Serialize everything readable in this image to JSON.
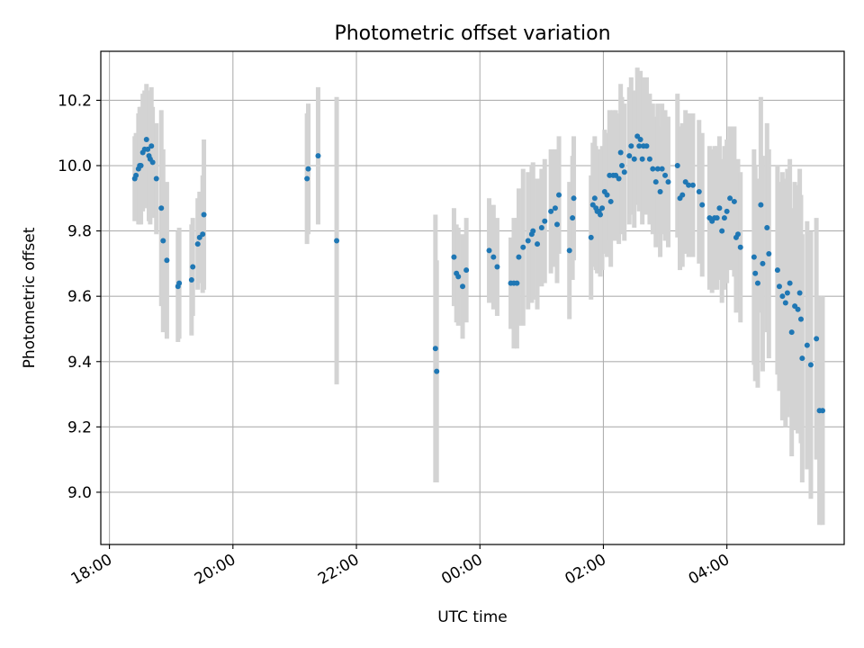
{
  "chart_data": {
    "type": "scatter",
    "title": "Photometric offset variation",
    "xlabel": "UTC time",
    "ylabel": "Photometric offset",
    "x_unit": "hours since 18:00 UTC",
    "xlim": [
      -0.14,
      11.9
    ],
    "ylim": [
      8.84,
      10.35
    ],
    "x_ticks": [
      {
        "label": "18:00",
        "value": 0
      },
      {
        "label": "20:00",
        "value": 2
      },
      {
        "label": "22:00",
        "value": 4
      },
      {
        "label": "00:00",
        "value": 6
      },
      {
        "label": "02:00",
        "value": 8
      },
      {
        "label": "04:00",
        "value": 10
      }
    ],
    "y_ticks": [
      {
        "label": "9.0",
        "value": 9.0
      },
      {
        "label": "9.2",
        "value": 9.2
      },
      {
        "label": "9.4",
        "value": 9.4
      },
      {
        "label": "9.6",
        "value": 9.6
      },
      {
        "label": "9.8",
        "value": 9.8
      },
      {
        "label": "10.0",
        "value": 10.0
      },
      {
        "label": "10.2",
        "value": 10.2
      }
    ],
    "grid": true,
    "colors": {
      "point": "#1f77b4",
      "errorbar": "#d3d3d3",
      "grid": "#b0b0b0"
    },
    "points": [
      [
        0.41,
        9.96,
        0.13
      ],
      [
        0.43,
        9.97,
        0.13
      ],
      [
        0.47,
        9.99,
        0.17
      ],
      [
        0.49,
        10.0,
        0.18
      ],
      [
        0.51,
        10.0,
        0.18
      ],
      [
        0.54,
        10.04,
        0.18
      ],
      [
        0.57,
        10.05,
        0.18
      ],
      [
        0.6,
        10.08,
        0.17
      ],
      [
        0.62,
        10.05,
        0.18
      ],
      [
        0.64,
        10.03,
        0.2
      ],
      [
        0.66,
        10.02,
        0.2
      ],
      [
        0.68,
        10.06,
        0.18
      ],
      [
        0.7,
        10.01,
        0.17
      ],
      [
        0.76,
        9.96,
        0.17
      ],
      [
        0.84,
        9.87,
        0.3
      ],
      [
        0.87,
        9.77,
        0.28
      ],
      [
        0.93,
        9.71,
        0.24
      ],
      [
        1.11,
        9.63,
        0.17
      ],
      [
        1.13,
        9.64,
        0.17
      ],
      [
        1.33,
        9.65,
        0.17
      ],
      [
        1.35,
        9.69,
        0.15
      ],
      [
        1.43,
        9.76,
        0.14
      ],
      [
        1.46,
        9.78,
        0.14
      ],
      [
        1.51,
        9.79,
        0.18
      ],
      [
        1.53,
        9.85,
        0.23
      ],
      [
        3.2,
        9.96,
        0.2
      ],
      [
        3.22,
        9.99,
        0.2
      ],
      [
        3.38,
        10.03,
        0.21
      ],
      [
        3.68,
        9.77,
        0.44
      ],
      [
        5.28,
        9.44,
        0.41
      ],
      [
        5.3,
        9.37,
        0.34
      ],
      [
        5.58,
        9.72,
        0.15
      ],
      [
        5.62,
        9.67,
        0.15
      ],
      [
        5.65,
        9.66,
        0.15
      ],
      [
        5.72,
        9.63,
        0.16
      ],
      [
        5.78,
        9.68,
        0.16
      ],
      [
        6.15,
        9.74,
        0.16
      ],
      [
        6.22,
        9.72,
        0.16
      ],
      [
        6.28,
        9.69,
        0.15
      ],
      [
        6.5,
        9.64,
        0.14
      ],
      [
        6.55,
        9.64,
        0.2
      ],
      [
        6.6,
        9.64,
        0.2
      ],
      [
        6.63,
        9.72,
        0.21
      ],
      [
        6.7,
        9.75,
        0.24
      ],
      [
        6.78,
        9.77,
        0.21
      ],
      [
        6.84,
        9.79,
        0.21
      ],
      [
        6.86,
        9.8,
        0.21
      ],
      [
        6.93,
        9.76,
        0.2
      ],
      [
        7.0,
        9.81,
        0.18
      ],
      [
        7.05,
        9.83,
        0.19
      ],
      [
        7.15,
        9.86,
        0.19
      ],
      [
        7.22,
        9.87,
        0.18
      ],
      [
        7.25,
        9.82,
        0.18
      ],
      [
        7.28,
        9.91,
        0.18
      ],
      [
        7.45,
        9.74,
        0.21
      ],
      [
        7.5,
        9.84,
        0.19
      ],
      [
        7.52,
        9.9,
        0.19
      ],
      [
        7.8,
        9.78,
        0.19
      ],
      [
        7.83,
        9.88,
        0.19
      ],
      [
        7.86,
        9.9,
        0.19
      ],
      [
        7.88,
        9.87,
        0.19
      ],
      [
        7.9,
        9.86,
        0.19
      ],
      [
        7.93,
        9.86,
        0.19
      ],
      [
        7.95,
        9.85,
        0.19
      ],
      [
        7.98,
        9.87,
        0.19
      ],
      [
        8.02,
        9.92,
        0.19
      ],
      [
        8.06,
        9.91,
        0.19
      ],
      [
        8.1,
        9.97,
        0.2
      ],
      [
        8.12,
        9.89,
        0.2
      ],
      [
        8.16,
        9.97,
        0.2
      ],
      [
        8.2,
        9.97,
        0.2
      ],
      [
        8.25,
        9.96,
        0.2
      ],
      [
        8.28,
        10.04,
        0.21
      ],
      [
        8.3,
        10.0,
        0.21
      ],
      [
        8.34,
        9.98,
        0.21
      ],
      [
        8.42,
        10.03,
        0.21
      ],
      [
        8.45,
        10.06,
        0.21
      ],
      [
        8.5,
        10.02,
        0.21
      ],
      [
        8.55,
        10.09,
        0.21
      ],
      [
        8.58,
        10.06,
        0.2
      ],
      [
        8.6,
        10.08,
        0.21
      ],
      [
        8.63,
        10.02,
        0.2
      ],
      [
        8.65,
        10.06,
        0.21
      ],
      [
        8.7,
        10.06,
        0.21
      ],
      [
        8.75,
        10.02,
        0.2
      ],
      [
        8.8,
        9.99,
        0.2
      ],
      [
        8.85,
        9.95,
        0.2
      ],
      [
        8.88,
        9.99,
        0.2
      ],
      [
        8.92,
        9.92,
        0.2
      ],
      [
        8.95,
        9.99,
        0.2
      ],
      [
        9.0,
        9.97,
        0.2
      ],
      [
        9.05,
        9.95,
        0.2
      ],
      [
        9.2,
        10.0,
        0.22
      ],
      [
        9.24,
        9.9,
        0.22
      ],
      [
        9.28,
        9.91,
        0.22
      ],
      [
        9.33,
        9.95,
        0.22
      ],
      [
        9.38,
        9.94,
        0.22
      ],
      [
        9.45,
        9.94,
        0.22
      ],
      [
        9.55,
        9.92,
        0.22
      ],
      [
        9.6,
        9.88,
        0.22
      ],
      [
        9.72,
        9.84,
        0.22
      ],
      [
        9.76,
        9.83,
        0.22
      ],
      [
        9.8,
        9.84,
        0.22
      ],
      [
        9.84,
        9.84,
        0.22
      ],
      [
        9.88,
        9.87,
        0.22
      ],
      [
        9.92,
        9.8,
        0.22
      ],
      [
        9.96,
        9.84,
        0.22
      ],
      [
        10.0,
        9.86,
        0.22
      ],
      [
        10.05,
        9.9,
        0.22
      ],
      [
        10.12,
        9.89,
        0.23
      ],
      [
        10.15,
        9.78,
        0.23
      ],
      [
        10.18,
        9.79,
        0.23
      ],
      [
        10.22,
        9.75,
        0.23
      ],
      [
        10.44,
        9.72,
        0.33
      ],
      [
        10.46,
        9.67,
        0.33
      ],
      [
        10.5,
        9.64,
        0.32
      ],
      [
        10.55,
        9.88,
        0.33
      ],
      [
        10.58,
        9.7,
        0.33
      ],
      [
        10.65,
        9.81,
        0.32
      ],
      [
        10.68,
        9.73,
        0.32
      ],
      [
        10.82,
        9.68,
        0.32
      ],
      [
        10.85,
        9.63,
        0.32
      ],
      [
        10.9,
        9.6,
        0.38
      ],
      [
        10.95,
        9.58,
        0.38
      ],
      [
        10.98,
        9.61,
        0.38
      ],
      [
        11.02,
        9.64,
        0.38
      ],
      [
        11.05,
        9.49,
        0.38
      ],
      [
        11.1,
        9.57,
        0.38
      ],
      [
        11.15,
        9.56,
        0.38
      ],
      [
        11.18,
        9.61,
        0.38
      ],
      [
        11.2,
        9.53,
        0.38
      ],
      [
        11.22,
        9.41,
        0.38
      ],
      [
        11.3,
        9.45,
        0.38
      ],
      [
        11.36,
        9.39,
        0.41
      ],
      [
        11.45,
        9.47,
        0.37
      ],
      [
        11.5,
        9.25,
        0.35
      ],
      [
        11.55,
        9.25,
        0.35
      ]
    ]
  }
}
